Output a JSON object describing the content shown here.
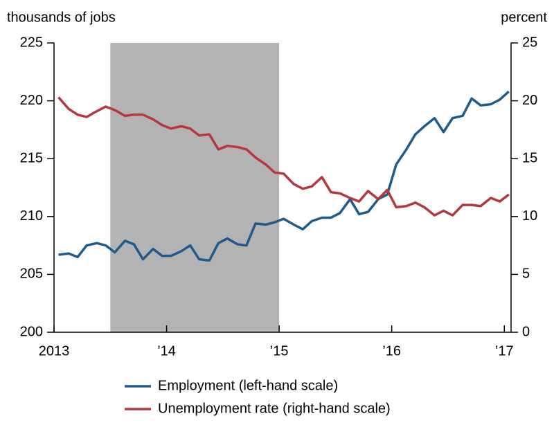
{
  "chart_data": {
    "type": "line",
    "y_axis_label": "thousands of jobs",
    "y2_axis_label": "percent",
    "x": [
      2013.04,
      2013.13,
      2013.21,
      2013.29,
      2013.38,
      2013.46,
      2013.54,
      2013.63,
      2013.71,
      2013.79,
      2013.88,
      2013.96,
      2014.04,
      2014.13,
      2014.21,
      2014.29,
      2014.38,
      2014.46,
      2014.54,
      2014.63,
      2014.71,
      2014.79,
      2014.88,
      2014.96,
      2015.04,
      2015.13,
      2015.21,
      2015.29,
      2015.38,
      2015.46,
      2015.54,
      2015.63,
      2015.71,
      2015.79,
      2015.88,
      2015.96,
      2016.04,
      2016.13,
      2016.21,
      2016.29,
      2016.38,
      2016.46,
      2016.54,
      2016.63,
      2016.71,
      2016.79,
      2016.88,
      2016.96,
      2017.04
    ],
    "series": [
      {
        "name": "Employment (left-hand scale)",
        "color": "#1f5a8c",
        "values": [
          206.7,
          206.8,
          206.5,
          207.5,
          207.7,
          207.5,
          206.9,
          207.9,
          207.6,
          206.3,
          207.2,
          206.6,
          206.6,
          207.0,
          207.5,
          206.3,
          206.2,
          207.7,
          208.1,
          207.6,
          207.5,
          209.4,
          209.3,
          209.5,
          209.8,
          209.3,
          208.9,
          209.6,
          209.9,
          209.9,
          210.3,
          211.5,
          210.2,
          210.4,
          211.5,
          211.9,
          214.5,
          215.8,
          217.1,
          217.8,
          218.5,
          217.3,
          218.5,
          218.7,
          220.2,
          219.6,
          219.7,
          220.1,
          220.8
        ]
      },
      {
        "name": "Unemployment rate (right-hand scale)",
        "color": "#b5373f",
        "axis": "y2",
        "values": [
          20.3,
          19.3,
          18.8,
          18.6,
          19.1,
          19.5,
          19.2,
          18.7,
          18.8,
          18.8,
          18.4,
          17.9,
          17.6,
          17.8,
          17.6,
          17.0,
          17.1,
          15.8,
          16.1,
          16.0,
          15.8,
          15.1,
          14.5,
          13.8,
          13.7,
          12.8,
          12.4,
          12.6,
          13.4,
          12.1,
          12.0,
          11.6,
          11.3,
          12.2,
          11.5,
          12.3,
          10.8,
          10.9,
          11.2,
          10.8,
          10.1,
          10.5,
          10.1,
          11.0,
          11.0,
          10.9,
          11.6,
          11.3,
          11.9
        ]
      }
    ],
    "shaded_range": [
      2013.5,
      2015
    ],
    "shade_color": "#b3b3b3",
    "xlim": [
      2013,
      2017.06
    ],
    "xticks": [
      2013,
      {
        "value": 2014,
        "label": "’14"
      },
      {
        "value": 2015,
        "label": "’15"
      },
      {
        "value": 2016,
        "label": "’16"
      },
      {
        "value": 2017,
        "label": "’17"
      }
    ],
    "ylim": [
      200,
      225
    ],
    "yticks": [
      200,
      205,
      210,
      215,
      220,
      225
    ],
    "y2lim": [
      0,
      25
    ],
    "y2ticks": [
      0,
      5,
      10,
      15,
      20,
      25
    ],
    "grid": false,
    "legend": "bottom"
  }
}
